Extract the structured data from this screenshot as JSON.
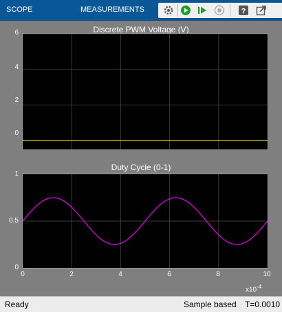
{
  "toolbar": {
    "tabs": [
      {
        "label": "SCOPE"
      },
      {
        "label": "MEASUREMENTS"
      }
    ],
    "icons": [
      "settings-icon",
      "run-icon",
      "step-forward-icon",
      "stop-icon",
      "help-icon",
      "undock-icon"
    ],
    "colors": {
      "accent": "#0a5797",
      "run": "#1f9d2b"
    }
  },
  "plot1": {
    "title": "Discrete PWM Voltage (V)",
    "yticks": [
      "6",
      "4",
      "2",
      "0"
    ]
  },
  "plot2": {
    "title": "Duty Cycle (0-1)",
    "yticks": [
      "1",
      "0.5",
      "0"
    ],
    "xticks": [
      "0",
      "2",
      "4",
      "6",
      "8",
      "10"
    ],
    "xexponent": "x10",
    "xexponent_power": "-4"
  },
  "status": {
    "left": "Ready",
    "mode": "Sample based",
    "time": "T=0.0010"
  },
  "chart_data": [
    {
      "type": "line",
      "title": "Discrete PWM Voltage (V)",
      "ylim": [
        -0.5,
        6
      ],
      "xlim": [
        0,
        0.001
      ],
      "grid": true,
      "series": [
        {
          "x": [
            0,
            0.001
          ],
          "y": [
            0,
            0
          ],
          "color": "#e6e600"
        }
      ]
    },
    {
      "type": "line",
      "title": "Duty Cycle (0-1)",
      "ylim": [
        0,
        1
      ],
      "xlim": [
        0,
        0.001
      ],
      "grid": true,
      "series": [
        {
          "amplitude": 0.25,
          "offset": 0.5,
          "frequency_hz": 2000,
          "color": "#e000e0"
        }
      ]
    }
  ]
}
